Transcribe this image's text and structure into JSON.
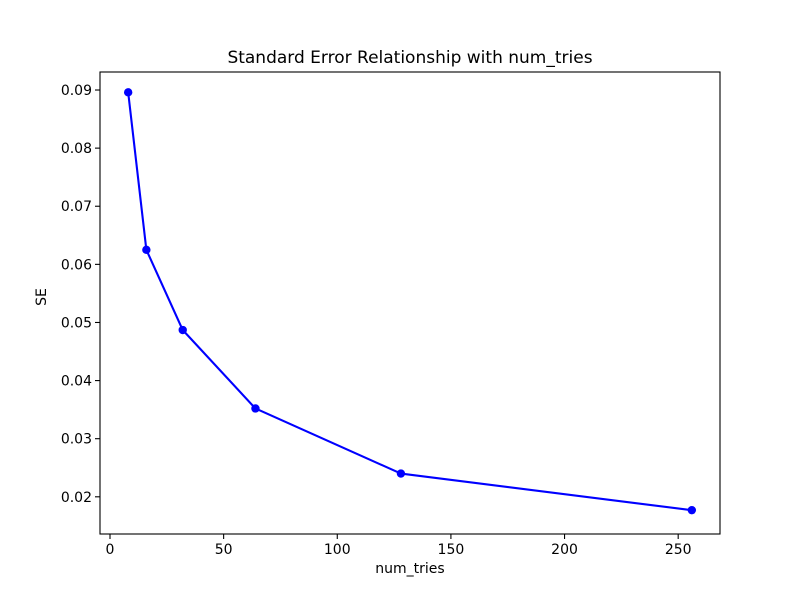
{
  "figure": {
    "background": "#ffffff"
  },
  "colors": {
    "line": "#0000ff",
    "axes": "#000000",
    "text": "#000000",
    "background": "#ffffff"
  },
  "chart_data": {
    "type": "line",
    "title": "Standard Error Relationship with num_tries",
    "xlabel": "num_tries",
    "ylabel": "SE",
    "x": [
      8,
      16,
      32,
      64,
      128,
      256
    ],
    "y": [
      0.0896,
      0.0625,
      0.0487,
      0.0352,
      0.024,
      0.0177
    ],
    "series": [
      {
        "name": "SE",
        "x": [
          8,
          16,
          32,
          64,
          128,
          256
        ],
        "values": [
          0.0896,
          0.0625,
          0.0487,
          0.0352,
          0.024,
          0.0177
        ]
      }
    ],
    "x_ticks": [
      0,
      50,
      100,
      150,
      200,
      250
    ],
    "y_ticks": [
      0.02,
      0.03,
      0.04,
      0.05,
      0.06,
      0.07,
      0.08,
      0.09
    ],
    "y_tick_decimals": 2,
    "xlim": [
      -4.4,
      268.4
    ],
    "ylim": [
      0.0136,
      0.0931
    ],
    "grid": false,
    "legend": null,
    "marker": "circle",
    "line_color": "#0000ff"
  }
}
